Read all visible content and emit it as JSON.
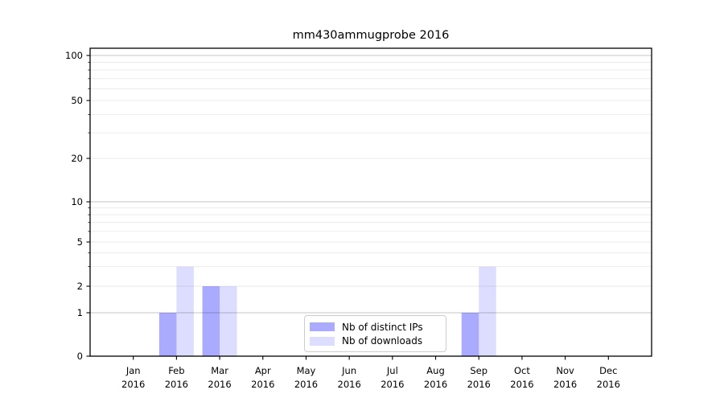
{
  "figure": {
    "title": "mm430ammugprobe 2016",
    "background": "#ffffff"
  },
  "legend": {
    "items": [
      {
        "label": "Nb of distinct IPs",
        "color": "#aaaaff"
      },
      {
        "label": "Nb of downloads",
        "color": "#ddddff"
      }
    ]
  },
  "chart_data": {
    "type": "bar",
    "title": "mm430ammugprobe 2016",
    "categories": [
      "Jan 2016",
      "Feb 2016",
      "Mar 2016",
      "Apr 2016",
      "May 2016",
      "Jun 2016",
      "Jul 2016",
      "Aug 2016",
      "Sep 2016",
      "Oct 2016",
      "Nov 2016",
      "Dec 2016"
    ],
    "series": [
      {
        "name": "Nb of distinct IPs",
        "color": "#aaaaff",
        "values": [
          0,
          1,
          2,
          0,
          0,
          0,
          0,
          0,
          1,
          0,
          0,
          0
        ]
      },
      {
        "name": "Nb of downloads",
        "color": "#ddddff",
        "values": [
          0,
          3,
          2,
          0,
          0,
          0,
          0,
          0,
          3,
          0,
          0,
          0
        ]
      }
    ],
    "xlabel": "",
    "ylabel": "",
    "yscale": "symlog",
    "ylim": [
      0,
      110
    ],
    "y_tick_values": [
      0,
      1,
      2,
      5,
      10,
      20,
      50,
      100
    ],
    "y_tick_labels": [
      "0",
      "1",
      "2",
      "5",
      "10",
      "20",
      "50",
      "100"
    ],
    "y_major_gridlines": [
      1,
      10,
      100
    ],
    "y_minor_gridlines": [
      2,
      3,
      4,
      5,
      6,
      7,
      8,
      9,
      20,
      30,
      40,
      50,
      60,
      70,
      80,
      90
    ],
    "grid": true,
    "legend_position": "lower center"
  }
}
